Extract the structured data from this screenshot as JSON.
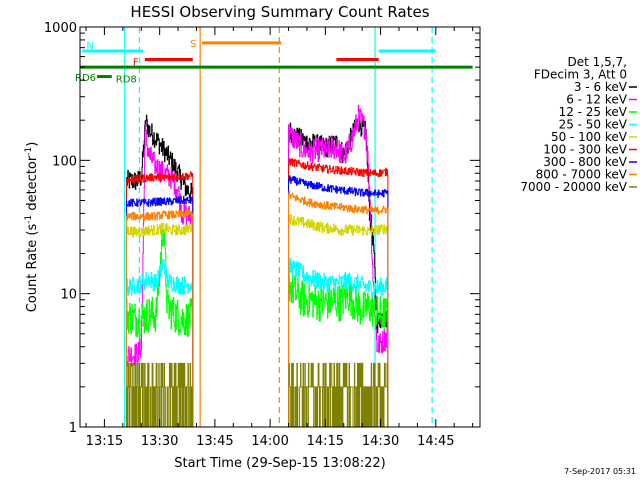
{
  "chart_data": {
    "type": "line",
    "title": "HESSI Observing Summary Count Rates",
    "xlabel": "Start Time (29-Sep-15 13:08:22)",
    "ylabel": "Count Rate (s⁻¹ detector⁻¹)",
    "ylabel_parts": [
      "Count Rate (s",
      "-1",
      " detector",
      "-1",
      ")"
    ],
    "yscale": "log",
    "ylim": [
      1,
      1000
    ],
    "xlim_min": [
      788.37,
      897
    ],
    "x_ticks": [
      {
        "min": 795,
        "label": "13:15"
      },
      {
        "min": 810,
        "label": "13:30"
      },
      {
        "min": 825,
        "label": "13:45"
      },
      {
        "min": 840,
        "label": "14:00"
      },
      {
        "min": 855,
        "label": "14:15"
      },
      {
        "min": 870,
        "label": "14:30"
      },
      {
        "min": 885,
        "label": "14:45"
      }
    ],
    "y_ticks": [
      {
        "value": 1,
        "label": "1"
      },
      {
        "value": 10,
        "label": "10"
      },
      {
        "value": 100,
        "label": "100"
      },
      {
        "value": 1000,
        "label": "1000"
      }
    ],
    "legend": {
      "header": [
        "Det 1,5,7,",
        "FDecim 3, Att 0"
      ],
      "entries": [
        {
          "label": "3 - 6 keV",
          "color": "#000000"
        },
        {
          "label": "6 - 12 keV",
          "color": "#ff00ff"
        },
        {
          "label": "12 - 25 keV",
          "color": "#00ff00"
        },
        {
          "label": "25 - 50 keV",
          "color": "#00ffff"
        },
        {
          "label": "50 - 100 keV",
          "color": "#d4d400"
        },
        {
          "label": "100 - 300 keV",
          "color": "#ff0000"
        },
        {
          "label": "300 - 800 keV",
          "color": "#0000ff"
        },
        {
          "label": "800 - 7000 keV",
          "color": "#ff8000"
        },
        {
          "label": "7000 - 20000 keV",
          "color": "#808000"
        }
      ]
    },
    "orbit_flags": [
      {
        "label": "N",
        "color": "#00ffff",
        "segments": [
          [
            789,
            805.5
          ],
          [
            869.5,
            885
          ]
        ],
        "level": 660
      },
      {
        "label": "F",
        "color": "#ff0000",
        "segments": [
          [
            806,
            819
          ],
          [
            858,
            869.5
          ]
        ],
        "level": 570
      },
      {
        "label": "S",
        "color": "#ff8000",
        "segments": [
          [
            821.5,
            843
          ]
        ],
        "level": 760
      },
      {
        "label": "RD6",
        "color": "#008000",
        "segments": [
          [
            788.5,
            895
          ]
        ],
        "level": 500
      },
      {
        "label": "RD8",
        "color": "#008000",
        "segments": [
          [
            793,
            797
          ]
        ],
        "level": 425
      }
    ],
    "vlines": [
      {
        "min": 800.5,
        "color": "#00ffff",
        "style": "solid"
      },
      {
        "min": 804.5,
        "color": "#00ffff",
        "style": "dashed"
      },
      {
        "min": 821,
        "color": "#ff8000",
        "style": "solid"
      },
      {
        "min": 842.5,
        "color": "#ff8000",
        "style": "dashed"
      },
      {
        "min": 868.5,
        "color": "#00ffff",
        "style": "solid"
      },
      {
        "min": 884,
        "color": "#00ffff",
        "style": "dashed"
      }
    ],
    "series": [
      {
        "name": "3 - 6 keV",
        "color": "#000000",
        "noise": 0.08,
        "segments": [
          [
            [
              801,
              70
            ],
            [
              804,
              70
            ],
            [
              805,
              75
            ],
            [
              806.2,
              200
            ],
            [
              807,
              170
            ],
            [
              809,
              145
            ],
            [
              811,
              120
            ],
            [
              813,
              100
            ],
            [
              815,
              80
            ],
            [
              817,
              62
            ],
            [
              819,
              55
            ]
          ],
          [
            [
              845,
              170
            ],
            [
              847,
              150
            ],
            [
              849,
              140
            ],
            [
              851,
              135
            ],
            [
              853,
              130
            ],
            [
              855,
              125
            ],
            [
              858,
              135
            ],
            [
              860,
              110
            ],
            [
              862,
              150
            ],
            [
              864,
              195
            ],
            [
              866,
              160
            ],
            [
              867,
              40
            ],
            [
              868,
              25
            ],
            [
              869,
              6
            ],
            [
              871,
              7
            ],
            [
              872,
              6
            ]
          ]
        ]
      },
      {
        "name": "6 - 12 keV",
        "color": "#ff00ff",
        "noise": 0.09,
        "segments": [
          [
            [
              801,
              3.5
            ],
            [
              804,
              3.5
            ],
            [
              805,
              4
            ],
            [
              806,
              160
            ],
            [
              807,
              110
            ],
            [
              809,
              90
            ],
            [
              811,
              80
            ],
            [
              813,
              75
            ],
            [
              815,
              60
            ],
            [
              816,
              40
            ],
            [
              818,
              38
            ],
            [
              819,
              38
            ]
          ],
          [
            [
              845,
              160
            ],
            [
              847,
              140
            ],
            [
              849,
              120
            ],
            [
              851,
              115
            ],
            [
              853,
              120
            ],
            [
              855,
              120
            ],
            [
              858,
              125
            ],
            [
              860,
              105
            ],
            [
              862,
              140
            ],
            [
              864,
              215
            ],
            [
              866,
              170
            ],
            [
              867,
              60
            ],
            [
              868,
              12
            ],
            [
              869,
              4
            ],
            [
              871,
              4.5
            ],
            [
              872,
              5
            ]
          ]
        ]
      },
      {
        "name": "12 - 25 keV",
        "color": "#00ff00",
        "noise": 0.14,
        "segments": [
          [
            [
              801,
              7
            ],
            [
              803,
              6.5
            ],
            [
              805,
              6.5
            ],
            [
              807,
              7
            ],
            [
              809,
              7
            ],
            [
              810,
              15
            ],
            [
              811,
              35
            ],
            [
              812,
              8
            ],
            [
              814,
              7
            ],
            [
              816,
              6.5
            ],
            [
              818,
              6.5
            ],
            [
              819,
              7
            ]
          ],
          [
            [
              845,
              12
            ],
            [
              847,
              10
            ],
            [
              849,
              9
            ],
            [
              851,
              9
            ],
            [
              853,
              8.5
            ],
            [
              855,
              8.5
            ],
            [
              857,
              9
            ],
            [
              859,
              8.5
            ],
            [
              861,
              10
            ],
            [
              863,
              8.5
            ],
            [
              865,
              7.5
            ],
            [
              867,
              8
            ],
            [
              869,
              7
            ],
            [
              871,
              7
            ],
            [
              872,
              7
            ]
          ]
        ]
      },
      {
        "name": "25 - 50 keV",
        "color": "#00ffff",
        "noise": 0.07,
        "segments": [
          [
            [
              801,
              11
            ],
            [
              803,
              11.5
            ],
            [
              805,
              12
            ],
            [
              807,
              13
            ],
            [
              809,
              12
            ],
            [
              810,
              14
            ],
            [
              811,
              17
            ],
            [
              812,
              12.5
            ],
            [
              814,
              12
            ],
            [
              816,
              11.5
            ],
            [
              819,
              12
            ]
          ],
          [
            [
              845,
              16
            ],
            [
              847,
              15
            ],
            [
              849,
              14
            ],
            [
              851,
              13
            ],
            [
              853,
              12.5
            ],
            [
              855,
              12
            ],
            [
              857,
              12
            ],
            [
              859,
              12
            ],
            [
              861,
              12.5
            ],
            [
              863,
              12
            ],
            [
              865,
              11.5
            ],
            [
              867,
              11
            ],
            [
              869,
              11
            ],
            [
              872,
              11.5
            ]
          ]
        ]
      },
      {
        "name": "50 - 100 keV",
        "color": "#d4d400",
        "noise": 0.04,
        "segments": [
          [
            [
              801,
              30
            ],
            [
              803,
              29
            ],
            [
              805,
              29
            ],
            [
              807,
              30
            ],
            [
              809,
              30
            ],
            [
              811,
              31
            ],
            [
              813,
              30
            ],
            [
              815,
              30
            ],
            [
              817,
              30
            ],
            [
              819,
              32
            ]
          ],
          [
            [
              845,
              37
            ],
            [
              847,
              35
            ],
            [
              849,
              34
            ],
            [
              851,
              33
            ],
            [
              853,
              32
            ],
            [
              855,
              31
            ],
            [
              857,
              31
            ],
            [
              859,
              30
            ],
            [
              861,
              30
            ],
            [
              863,
              30
            ],
            [
              865,
              30
            ],
            [
              867,
              29
            ],
            [
              869,
              30
            ],
            [
              872,
              31
            ]
          ]
        ]
      },
      {
        "name": "100 - 300 keV",
        "color": "#ff0000",
        "noise": 0.03,
        "segments": [
          [
            [
              801,
              72
            ],
            [
              803,
              72
            ],
            [
              805,
              73
            ],
            [
              807,
              74
            ],
            [
              809,
              75
            ],
            [
              811,
              74
            ],
            [
              813,
              75
            ],
            [
              815,
              76
            ],
            [
              817,
              76
            ],
            [
              819,
              77
            ]
          ],
          [
            [
              845,
              98
            ],
            [
              847,
              95
            ],
            [
              849,
              92
            ],
            [
              851,
              90
            ],
            [
              853,
              88
            ],
            [
              855,
              86
            ],
            [
              857,
              85
            ],
            [
              859,
              84
            ],
            [
              861,
              83
            ],
            [
              863,
              82
            ],
            [
              865,
              81
            ],
            [
              867,
              80
            ],
            [
              869,
              80
            ],
            [
              872,
              82
            ]
          ]
        ]
      },
      {
        "name": "300 - 800 keV",
        "color": "#0000ff",
        "noise": 0.03,
        "segments": [
          [
            [
              801,
              48
            ],
            [
              803,
              48
            ],
            [
              805,
              48
            ],
            [
              807,
              48
            ],
            [
              809,
              49
            ],
            [
              811,
              49
            ],
            [
              813,
              49
            ],
            [
              815,
              50
            ],
            [
              817,
              50
            ],
            [
              819,
              50
            ]
          ],
          [
            [
              845,
              72
            ],
            [
              847,
              70
            ],
            [
              849,
              67
            ],
            [
              851,
              65
            ],
            [
              853,
              64
            ],
            [
              855,
              62
            ],
            [
              857,
              61
            ],
            [
              859,
              60
            ],
            [
              861,
              59
            ],
            [
              863,
              58
            ],
            [
              865,
              57
            ],
            [
              867,
              57
            ],
            [
              869,
              56
            ],
            [
              872,
              57
            ]
          ]
        ]
      },
      {
        "name": "800 - 7000 keV",
        "color": "#ff8000",
        "noise": 0.03,
        "segments": [
          [
            [
              801,
              38
            ],
            [
              803,
              38
            ],
            [
              805,
              38
            ],
            [
              807,
              38
            ],
            [
              809,
              38
            ],
            [
              811,
              39
            ],
            [
              813,
              39
            ],
            [
              815,
              39
            ],
            [
              817,
              40
            ],
            [
              819,
              40
            ]
          ],
          [
            [
              845,
              55
            ],
            [
              847,
              52
            ],
            [
              849,
              50
            ],
            [
              851,
              48
            ],
            [
              853,
              47
            ],
            [
              855,
              46
            ],
            [
              857,
              45
            ],
            [
              859,
              44.5
            ],
            [
              861,
              44
            ],
            [
              863,
              43
            ],
            [
              865,
              43
            ],
            [
              867,
              42
            ],
            [
              869,
              42
            ],
            [
              872,
              43
            ]
          ]
        ]
      },
      {
        "name": "7000 - 20000 keV",
        "color": "#808000",
        "noise": 0.5,
        "quantized": true,
        "segments": [
          [
            [
              801,
              2.2
            ],
            [
              819,
              2.2
            ]
          ],
          [
            [
              845,
              2.4
            ],
            [
              872,
              2.4
            ]
          ]
        ]
      }
    ],
    "timestamp": "7-Sep-2017 05:31"
  }
}
